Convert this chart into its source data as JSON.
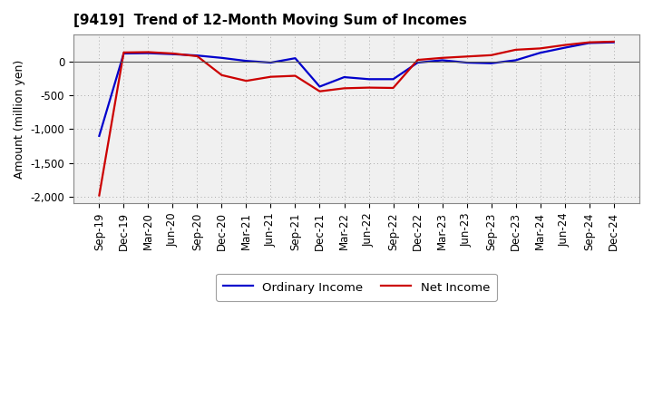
{
  "title": "[9419]  Trend of 12-Month Moving Sum of Incomes",
  "ylabel": "Amount (million yen)",
  "background_color": "#ffffff",
  "plot_bg_color": "#f0f0f0",
  "grid_color": "#aaaaaa",
  "ylim": [
    -2100,
    400
  ],
  "yticks": [
    -2000,
    -1500,
    -1000,
    -500,
    0
  ],
  "x_labels": [
    "Sep-19",
    "Dec-19",
    "Mar-20",
    "Jun-20",
    "Sep-20",
    "Dec-20",
    "Mar-21",
    "Jun-21",
    "Sep-21",
    "Dec-21",
    "Mar-22",
    "Jun-22",
    "Sep-22",
    "Dec-22",
    "Mar-23",
    "Jun-23",
    "Sep-23",
    "Dec-23",
    "Mar-24",
    "Jun-24",
    "Sep-24",
    "Dec-24"
  ],
  "ordinary_income": [
    -1100,
    120,
    125,
    110,
    90,
    55,
    10,
    -15,
    50,
    -370,
    -230,
    -260,
    -260,
    -15,
    20,
    -15,
    -25,
    20,
    130,
    205,
    275,
    285
  ],
  "net_income": [
    -1980,
    135,
    140,
    120,
    80,
    -200,
    -285,
    -225,
    -210,
    -440,
    -395,
    -385,
    -390,
    25,
    55,
    75,
    95,
    175,
    195,
    245,
    285,
    295
  ],
  "ordinary_color": "#0000cc",
  "net_color": "#cc0000",
  "line_width": 1.6,
  "legend_ordinary": "Ordinary Income",
  "legend_net": "Net Income",
  "tick_fontsize": 8.5,
  "ylabel_fontsize": 9,
  "title_fontsize": 11
}
